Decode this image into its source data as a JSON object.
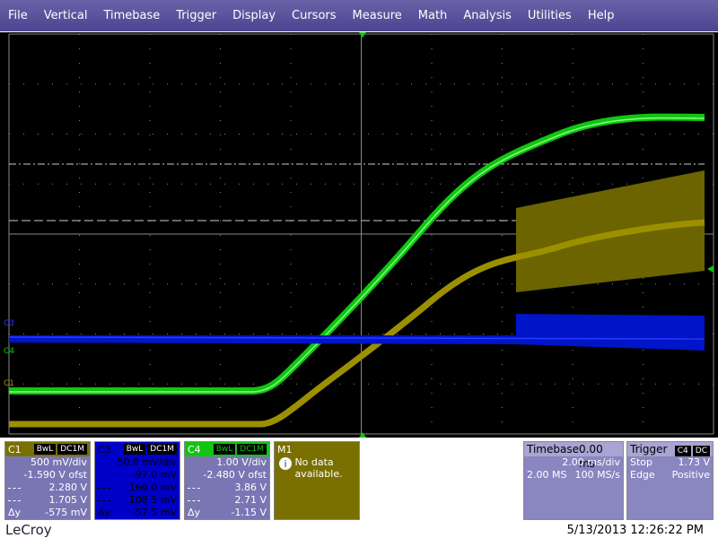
{
  "menu": [
    "File",
    "Vertical",
    "Timebase",
    "Trigger",
    "Display",
    "Cursors",
    "Measure",
    "Math",
    "Analysis",
    "Utilities",
    "Help"
  ],
  "trace_labels": [
    "C3",
    "C4",
    "C1"
  ],
  "channels": [
    {
      "name": "C1",
      "tags": [
        "BwL",
        "DC1M"
      ],
      "scale": "500 mV/div",
      "offset": "-1.590 V ofst",
      "cursor1": "2.280 V",
      "cursor2": "1.705 V",
      "delta_label": "Δy",
      "delta": "-575 mV"
    },
    {
      "name": "C3",
      "tags": [
        "BwL",
        "DC1M"
      ],
      "scale": "50.0 mV/div",
      "offset": "-97.0 mV",
      "cursor1": "166.0 mV",
      "cursor2": "108.5 mV",
      "delta_label": "Δy",
      "delta": "-57.5 mV"
    },
    {
      "name": "C4",
      "tags": [
        "BwL",
        "DC1M"
      ],
      "scale": "1.00 V/div",
      "offset": "-2.480 V ofst",
      "cursor1": "3.86 V",
      "cursor2": "2.71 V",
      "delta_label": "Δy",
      "delta": "-1.15 V"
    }
  ],
  "math": {
    "name": "M1",
    "message": "No data available."
  },
  "timebase": {
    "title": "Timebase",
    "delay": "0.00 ms",
    "scale": "2.00 ms/div",
    "samples": "2.00 MS",
    "rate": "100 MS/s"
  },
  "trigger": {
    "title": "Trigger",
    "source": "C4",
    "coupling": "DC",
    "mode": "Stop",
    "level": "1.73 V",
    "type": "Edge",
    "slope": "Positive"
  },
  "footer": {
    "brand": "LeCroy",
    "timestamp": "5/13/2013 12:26:22 PM"
  }
}
